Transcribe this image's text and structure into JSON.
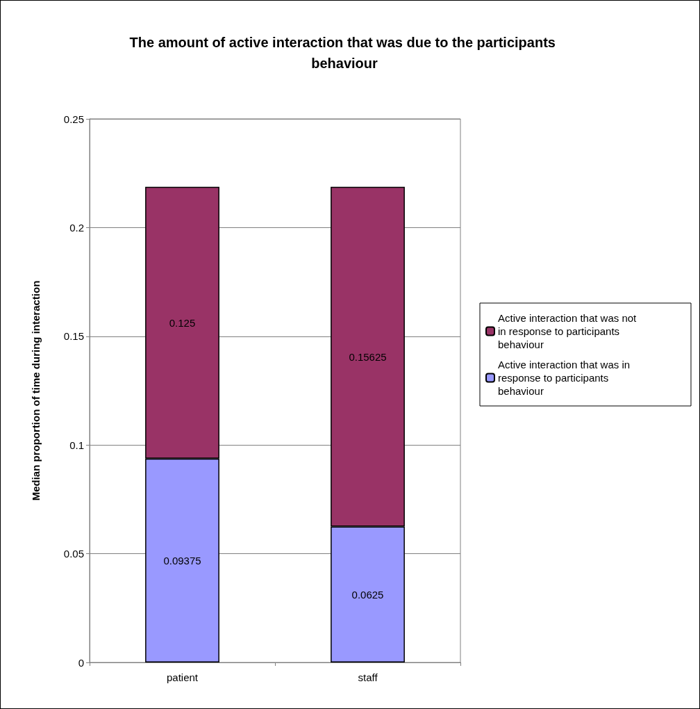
{
  "chart_data": {
    "type": "bar",
    "title": "The amount of active interaction that was due to the participants behaviour",
    "ylabel": "Median proportion of time during interaction",
    "categories": [
      "patient",
      "staff"
    ],
    "stacked": true,
    "series": [
      {
        "name": "Active interaction that was in response to participants behaviour",
        "color": "#9999ff",
        "values": [
          0.09375,
          0.0625
        ]
      },
      {
        "name": "Active interaction that was not in response to participants behaviour",
        "color": "#993366",
        "values": [
          0.125,
          0.15625
        ]
      }
    ],
    "ylim": [
      0,
      0.25
    ],
    "yticks": [
      0,
      0.05,
      0.1,
      0.15,
      0.2,
      0.25
    ],
    "grid": "y",
    "legend": "right",
    "data_labels": true
  }
}
